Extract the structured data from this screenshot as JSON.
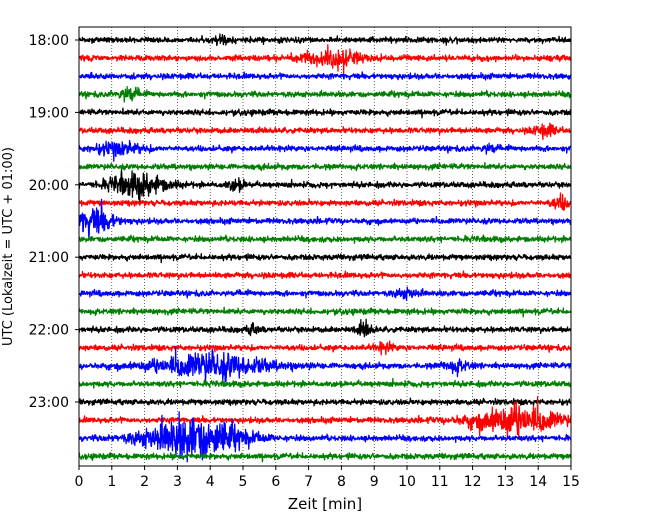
{
  "chart_data": {
    "type": "line",
    "title": "",
    "xlabel": "Zeit  [min]",
    "ylabel": "UTC (Lokalzeit = UTC + 01:00)",
    "xlim": [
      0,
      15
    ],
    "x_ticks": [
      "0",
      "1",
      "2",
      "3",
      "4",
      "5",
      "6",
      "7",
      "8",
      "9",
      "10",
      "11",
      "12",
      "13",
      "14",
      "15"
    ],
    "y_ticks": [
      "18:00",
      "19:00",
      "20:00",
      "21:00",
      "22:00",
      "23:00"
    ],
    "grid": "vertical dotted",
    "trace_interval_min": 15,
    "trace_colors": [
      "#000000",
      "#ff0000",
      "#0000ff",
      "#008000"
    ],
    "series": [
      {
        "start": "18:00",
        "color": "#000000",
        "events": [
          {
            "t": 4.4,
            "amp": 0.8,
            "dur": 0.3
          }
        ]
      },
      {
        "start": "18:15",
        "color": "#ff0000",
        "events": [
          {
            "t": 7.7,
            "amp": 1.6,
            "dur": 1.2
          }
        ]
      },
      {
        "start": "18:30",
        "color": "#0000ff",
        "events": []
      },
      {
        "start": "18:45",
        "color": "#008000",
        "events": [
          {
            "t": 1.5,
            "amp": 1.4,
            "dur": 0.4
          }
        ]
      },
      {
        "start": "19:00",
        "color": "#000000",
        "events": []
      },
      {
        "start": "19:15",
        "color": "#ff0000",
        "events": [
          {
            "t": 14.2,
            "amp": 1.0,
            "dur": 0.5
          }
        ]
      },
      {
        "start": "19:30",
        "color": "#0000ff",
        "events": [
          {
            "t": 1.2,
            "amp": 1.2,
            "dur": 1.0
          },
          {
            "t": 12.5,
            "amp": 0.8,
            "dur": 0.3
          }
        ]
      },
      {
        "start": "19:45",
        "color": "#008000",
        "events": []
      },
      {
        "start": "20:00",
        "color": "#000000",
        "events": [
          {
            "t": 1.8,
            "amp": 2.2,
            "dur": 1.2
          },
          {
            "t": 4.8,
            "amp": 1.0,
            "dur": 0.4
          }
        ]
      },
      {
        "start": "20:15",
        "color": "#ff0000",
        "events": [
          {
            "t": 14.7,
            "amp": 1.2,
            "dur": 0.4
          }
        ]
      },
      {
        "start": "20:30",
        "color": "#0000ff",
        "events": [
          {
            "t": 0.5,
            "amp": 2.6,
            "dur": 0.8
          }
        ]
      },
      {
        "start": "20:45",
        "color": "#008000",
        "events": []
      },
      {
        "start": "21:00",
        "color": "#000000",
        "events": []
      },
      {
        "start": "21:15",
        "color": "#ff0000",
        "events": []
      },
      {
        "start": "21:30",
        "color": "#0000ff",
        "events": [
          {
            "t": 10.0,
            "amp": 0.8,
            "dur": 0.5
          }
        ]
      },
      {
        "start": "21:45",
        "color": "#008000",
        "events": []
      },
      {
        "start": "22:00",
        "color": "#000000",
        "events": [
          {
            "t": 8.7,
            "amp": 1.4,
            "dur": 0.3
          },
          {
            "t": 5.3,
            "amp": 0.8,
            "dur": 0.3
          }
        ]
      },
      {
        "start": "22:15",
        "color": "#ff0000",
        "events": [
          {
            "t": 9.3,
            "amp": 0.8,
            "dur": 0.4
          }
        ]
      },
      {
        "start": "22:30",
        "color": "#0000ff",
        "events": [
          {
            "t": 4.0,
            "amp": 2.6,
            "dur": 2.4
          },
          {
            "t": 11.5,
            "amp": 1.0,
            "dur": 0.6
          }
        ]
      },
      {
        "start": "22:45",
        "color": "#008000",
        "events": []
      },
      {
        "start": "23:00",
        "color": "#000000",
        "events": []
      },
      {
        "start": "23:15",
        "color": "#ff0000",
        "events": [
          {
            "t": 13.3,
            "amp": 3.2,
            "dur": 1.8
          }
        ]
      },
      {
        "start": "23:30",
        "color": "#0000ff",
        "events": [
          {
            "t": 3.5,
            "amp": 4.5,
            "dur": 2.0
          }
        ]
      },
      {
        "start": "23:45",
        "color": "#008000",
        "events": []
      }
    ]
  }
}
